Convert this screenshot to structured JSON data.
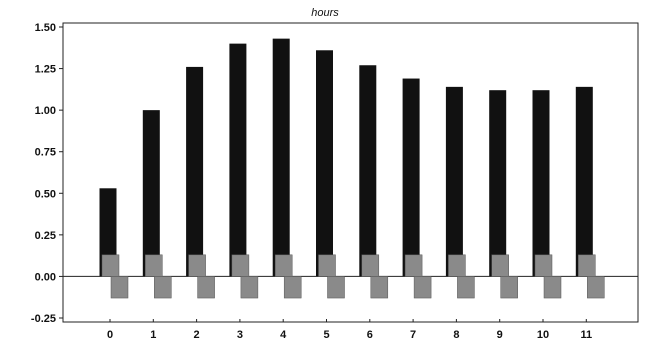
{
  "chart_data": {
    "type": "bar",
    "title": "hours",
    "xlabel": "",
    "ylabel": "",
    "categories": [
      "0",
      "1",
      "2",
      "3",
      "4",
      "5",
      "6",
      "7",
      "8",
      "9",
      "10",
      "11"
    ],
    "series": [
      {
        "values": [
          0.53,
          1.0,
          1.26,
          1.4,
          1.43,
          1.36,
          1.27,
          1.19,
          1.14,
          1.12,
          1.12,
          1.14
        ],
        "color": "#111111"
      },
      {
        "values": [
          0.13,
          0.13,
          0.13,
          0.13,
          0.13,
          0.13,
          0.13,
          0.13,
          0.13,
          0.13,
          0.13,
          0.13
        ],
        "color": "#8a8a8a"
      },
      {
        "values": [
          -0.13,
          -0.13,
          -0.13,
          -0.13,
          -0.13,
          -0.13,
          -0.13,
          -0.13,
          -0.13,
          -0.13,
          -0.13,
          -0.13
        ],
        "color": "#8a8a8a"
      }
    ],
    "ylim": [
      -0.25,
      1.5
    ],
    "yticks": [
      "1.50",
      "1.25",
      "1.00",
      "0.75",
      "0.50",
      "0.25",
      "0.00",
      "-0.25"
    ],
    "grid": false,
    "legend": "none"
  }
}
